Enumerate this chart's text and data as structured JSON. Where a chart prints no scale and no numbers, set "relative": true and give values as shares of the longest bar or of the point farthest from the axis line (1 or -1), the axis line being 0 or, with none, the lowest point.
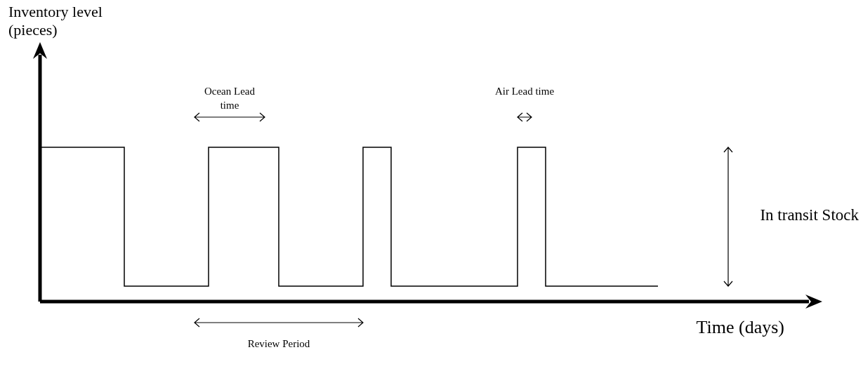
{
  "chart_data": {
    "type": "step",
    "relative": true,
    "xlabel": "Time (days)",
    "color": "#000000",
    "categories": [
      null,
      null,
      null,
      null,
      null,
      null,
      null,
      null,
      null,
      null,
      null,
      null,
      null,
      null,
      null,
      null,
      null,
      null,
      null,
      null,
      null,
      null,
      null,
      null,
      null,
      null,
      null,
      null,
      null,
      null,
      null,
      null,
      null,
      null,
      null,
      null,
      null,
      null,
      null,
      null,
      null,
      null,
      null,
      null,
      null,
      null,
      null,
      null,
      null,
      null,
      null,
      null,
      null,
      null,
      null
    ],
    "values": [
      1,
      1,
      1,
      1,
      1,
      1,
      0.1,
      0.1,
      0.1,
      0.1,
      0.1,
      0.1,
      1,
      1,
      1,
      1,
      1,
      0.1,
      0.1,
      0.1,
      0.1,
      0.1,
      0.1,
      1,
      1,
      0.1,
      0.1,
      0.1,
      0.1,
      0.1,
      0.1,
      0.1,
      0.1,
      0.1,
      1,
      1,
      0.1,
      0.1,
      0.1,
      0.1,
      0.1,
      0.1,
      0.1,
      0.1,
      0.1,
      null,
      null,
      null,
      null,
      null,
      null,
      null,
      null,
      null,
      null
    ],
    "annotations": [
      "Ocean Lead time",
      "Air Lead time",
      "Review Period",
      "In transit Stock",
      "Inventory level (pieces)"
    ],
    "grid": false,
    "legend": false
  }
}
